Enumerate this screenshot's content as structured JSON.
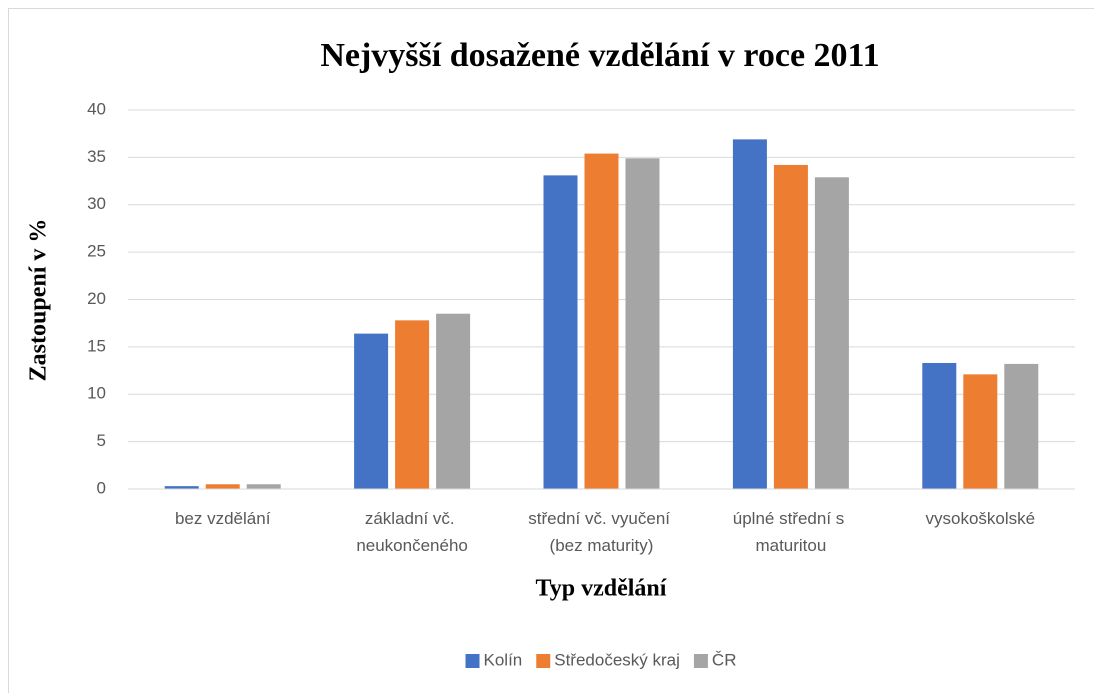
{
  "chart_data": {
    "type": "bar",
    "title": "Nejvyšší dosažené vzdělání v roce 2011",
    "x_label": "Typ vzdělání",
    "y_label": "Zastoupení v %",
    "categories": [
      "bez vzdělání",
      "základní vč. neukončeného",
      "střední vč. vyučení (bez maturity)",
      "úplné střední s maturitou",
      "vysokoškolské"
    ],
    "series": [
      {
        "name": "Kolín",
        "color": "#4472c4",
        "values": [
          0.3,
          16.4,
          33.1,
          36.9,
          13.3
        ]
      },
      {
        "name": "Středočeský kraj",
        "color": "#ed7d31",
        "values": [
          0.5,
          17.8,
          35.4,
          34.2,
          12.1
        ]
      },
      {
        "name": "ČR",
        "color": "#a5a5a5",
        "values": [
          0.5,
          18.5,
          34.9,
          32.9,
          13.2
        ]
      }
    ],
    "ylim": [
      0,
      40
    ],
    "yticks": [
      0,
      5,
      10,
      15,
      20,
      25,
      30,
      35,
      40
    ],
    "grid": true,
    "legend": "bottom"
  }
}
